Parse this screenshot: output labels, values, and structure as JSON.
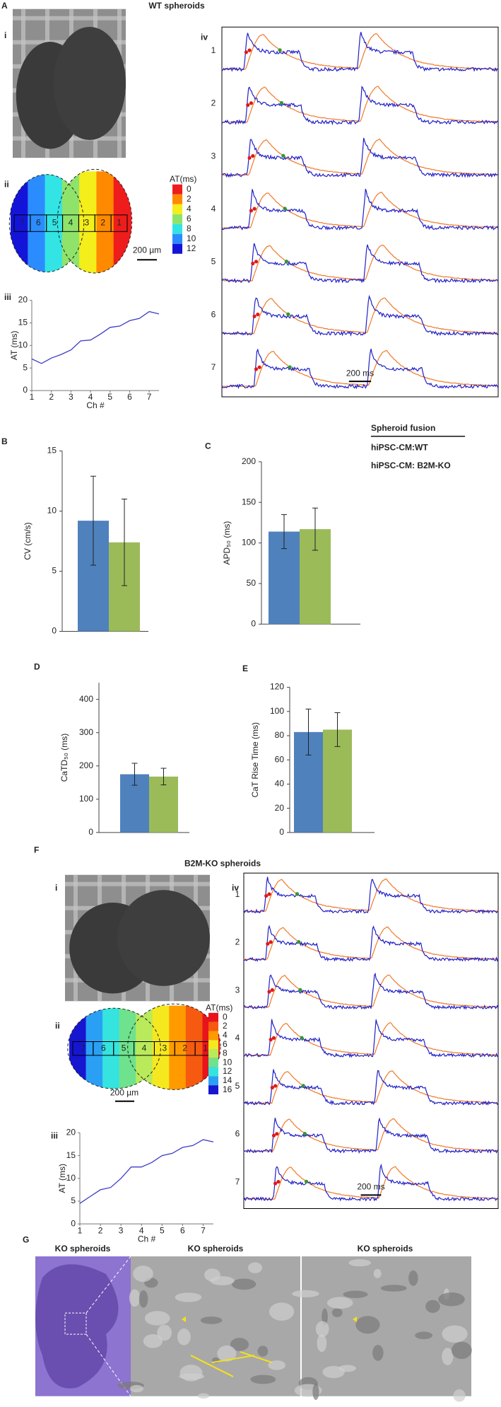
{
  "panel_a": {
    "letter": "A",
    "title": "WT spheroids",
    "i": "i",
    "ii": "ii",
    "iii": "iii",
    "iv": "iv",
    "at_legend": {
      "title": "AT(ms)",
      "values": [
        0,
        2,
        4,
        6,
        8,
        10,
        12
      ],
      "colors": [
        "#ee1c1c",
        "#ff8a00",
        "#f4ee1a",
        "#8fe36a",
        "#33e4e4",
        "#2b8cff",
        "#1414d8"
      ]
    },
    "channels": [
      7,
      6,
      5,
      4,
      3,
      2,
      1
    ],
    "scale_um": "200 µm",
    "trace_channels": [
      1,
      2,
      3,
      4,
      5,
      6,
      7
    ],
    "scale_ms": "200 ms"
  },
  "legend": {
    "title": "Spheroid fusion",
    "entries": [
      {
        "name": "hiPSC-CM:WT",
        "color": "#2878c0"
      },
      {
        "name": "hiPSC-CM: B2M-KO",
        "color": "#7aa83c"
      }
    ]
  },
  "panel_f": {
    "letter": "F",
    "title": "B2M-KO spheroids",
    "i": "i",
    "ii": "ii",
    "iii": "iii",
    "iv": "iv",
    "at_legend": {
      "title": "AT(ms)",
      "values": [
        0,
        2,
        4,
        6,
        8,
        10,
        12,
        14,
        16
      ],
      "colors": [
        "#e8141c",
        "#f55a10",
        "#ff9a00",
        "#f6e81e",
        "#b9ea5a",
        "#6ee28c",
        "#35e3df",
        "#2aa0f5",
        "#1616d0"
      ]
    },
    "channels": [
      7,
      6,
      5,
      4,
      3,
      2,
      1
    ],
    "scale_um": "200 µm",
    "trace_channels": [
      1,
      2,
      3,
      4,
      5,
      6,
      7
    ],
    "scale_ms": "200 ms"
  },
  "panel_g": {
    "letter": "G",
    "titles": [
      "KO spheroids",
      "KO spheroids",
      "KO spheroids"
    ]
  },
  "chart_data": [
    {
      "type": "line",
      "xlabel": "Ch #",
      "ylabel": "AT (ms)",
      "x": [
        1,
        1.5,
        2,
        2.5,
        3,
        3.5,
        4,
        4.5,
        5,
        5.5,
        6,
        6.5,
        7,
        7.5
      ],
      "series": [
        {
          "color": "#3c3cc8",
          "values": [
            7,
            6,
            7.2,
            8,
            9,
            11,
            11.2,
            12.5,
            14,
            14.3,
            15.5,
            16,
            17.5,
            17
          ]
        }
      ],
      "xlim": [
        1,
        7.5
      ],
      "ylim": [
        0,
        20
      ],
      "xticks": [
        1,
        2,
        3,
        4,
        5,
        6,
        7
      ],
      "yticks": [
        0,
        5,
        10,
        15,
        20
      ]
    },
    {
      "type": "bar",
      "panel": "B",
      "ylabel": "CV (cm/s)",
      "series": [
        {
          "color": "#4f81bd",
          "values": [
            9.2
          ],
          "errors": [
            3.7
          ]
        },
        {
          "color": "#9bbb59",
          "values": [
            7.4
          ],
          "errors": [
            3.6
          ]
        }
      ],
      "ylim": [
        0,
        15
      ],
      "yticks": [
        0,
        5,
        10,
        15
      ]
    },
    {
      "type": "bar",
      "panel": "C",
      "ylabel": "APD₅₀ (ms)",
      "series": [
        {
          "color": "#4f81bd",
          "values": [
            114
          ],
          "errors": [
            21
          ]
        },
        {
          "color": "#9bbb59",
          "values": [
            117
          ],
          "errors": [
            26
          ]
        }
      ],
      "ylim": [
        0,
        200
      ],
      "yticks": [
        0,
        50,
        100,
        150,
        200
      ]
    },
    {
      "type": "bar",
      "panel": "D",
      "ylabel": "CaTD₅₀ (ms)",
      "series": [
        {
          "color": "#4f81bd",
          "values": [
            175
          ],
          "errors": [
            33
          ]
        },
        {
          "color": "#9bbb59",
          "values": [
            168
          ],
          "errors": [
            25
          ]
        }
      ],
      "ylim": [
        0,
        450
      ],
      "yticks": [
        0,
        100,
        200,
        300,
        400
      ]
    },
    {
      "type": "bar",
      "panel": "E",
      "ylabel": "CaT Rise Time (ms)",
      "series": [
        {
          "color": "#4f81bd",
          "values": [
            83
          ],
          "errors": [
            19
          ]
        },
        {
          "color": "#9bbb59",
          "values": [
            85
          ],
          "errors": [
            14
          ]
        }
      ],
      "ylim": [
        0,
        120
      ],
      "yticks": [
        0,
        20,
        40,
        60,
        80,
        100,
        120
      ]
    },
    {
      "type": "line",
      "xlabel": "Ch #",
      "ylabel": "AT (ms)",
      "x": [
        1,
        1.5,
        2,
        2.5,
        3,
        3.5,
        4,
        4.5,
        5,
        5.5,
        6,
        6.5,
        7,
        7.5
      ],
      "series": [
        {
          "color": "#3c3cc8",
          "values": [
            4.5,
            6,
            7.5,
            8,
            10,
            12.5,
            12.5,
            13.5,
            15,
            15.5,
            16.8,
            17.2,
            18.5,
            18
          ]
        }
      ],
      "xlim": [
        1,
        7.5
      ],
      "ylim": [
        0,
        20
      ],
      "xticks": [
        1,
        2,
        3,
        4,
        5,
        6,
        7
      ],
      "yticks": [
        0,
        5,
        10,
        15,
        20
      ]
    }
  ]
}
